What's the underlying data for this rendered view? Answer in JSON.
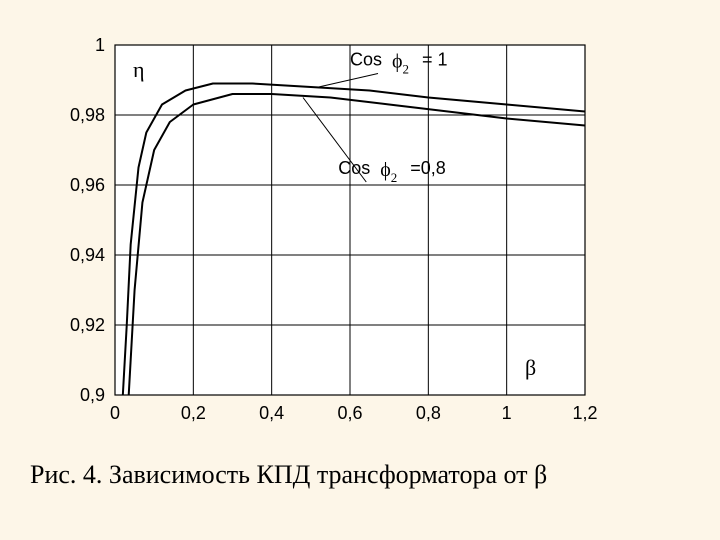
{
  "chart": {
    "type": "line",
    "background_color": "#fdf6e8",
    "plot_background": "#ffffff",
    "grid_color": "#000000",
    "grid_line_width": 1,
    "axis": {
      "xlim": [
        0,
        1.2
      ],
      "ylim": [
        0.9,
        1.0
      ],
      "xticks": [
        0,
        0.2,
        0.4,
        0.6,
        0.8,
        1.0,
        1.2
      ],
      "xtick_labels": [
        "0",
        "0,2",
        "0,4",
        "0,6",
        "0,8",
        "1",
        "1,2"
      ],
      "yticks": [
        0.9,
        0.92,
        0.94,
        0.96,
        0.98,
        1.0
      ],
      "ytick_labels": [
        "0,9",
        "0,92",
        "0,94",
        "0,96",
        "0,98",
        "1"
      ],
      "tick_fontsize": 18,
      "tick_fontfamily": "Arial"
    },
    "ylabel_symbol": "η",
    "xlabel_symbol": "β",
    "series": [
      {
        "name": "cos_phi_1",
        "label_prefix": "Cos",
        "phi_symbol": "ϕ",
        "phi_sub": "2",
        "eq_text": "= 1",
        "color": "#000000",
        "line_width": 2,
        "points": [
          [
            0.02,
            0.9
          ],
          [
            0.03,
            0.92
          ],
          [
            0.04,
            0.943
          ],
          [
            0.06,
            0.965
          ],
          [
            0.08,
            0.975
          ],
          [
            0.12,
            0.983
          ],
          [
            0.18,
            0.987
          ],
          [
            0.25,
            0.989
          ],
          [
            0.35,
            0.989
          ],
          [
            0.5,
            0.988
          ],
          [
            0.65,
            0.987
          ],
          [
            0.8,
            0.985
          ],
          [
            1.0,
            0.983
          ],
          [
            1.2,
            0.981
          ]
        ],
        "label_anchor": [
          0.6,
          0.997
        ],
        "leader_to": [
          0.52,
          0.988
        ]
      },
      {
        "name": "cos_phi_08",
        "label_prefix": "Cos",
        "phi_symbol": "ϕ",
        "phi_sub": "2",
        "eq_text": "=0,8",
        "color": "#000000",
        "line_width": 2,
        "points": [
          [
            0.035,
            0.9
          ],
          [
            0.05,
            0.93
          ],
          [
            0.07,
            0.955
          ],
          [
            0.1,
            0.97
          ],
          [
            0.14,
            0.978
          ],
          [
            0.2,
            0.983
          ],
          [
            0.3,
            0.986
          ],
          [
            0.4,
            0.986
          ],
          [
            0.55,
            0.985
          ],
          [
            0.7,
            0.983
          ],
          [
            0.85,
            0.981
          ],
          [
            1.0,
            0.979
          ],
          [
            1.2,
            0.977
          ]
        ],
        "label_anchor": [
          0.57,
          0.966
        ],
        "leader_to": [
          0.48,
          0.985
        ]
      }
    ]
  },
  "caption": "Рис. 4. Зависимость КПД трансформатора от β"
}
